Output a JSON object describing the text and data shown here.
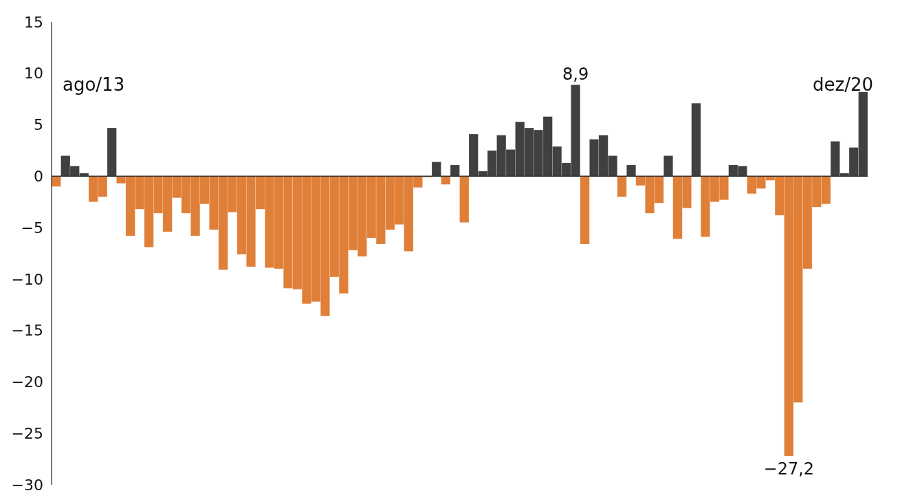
{
  "chart_data": {
    "type": "bar",
    "annotations": [
      "ago/13",
      "dez/20"
    ],
    "categories": [
      null,
      null,
      null,
      null,
      null,
      null,
      null,
      null,
      null,
      null,
      null,
      null,
      null,
      null,
      null,
      null,
      null,
      null,
      null,
      null,
      null,
      null,
      null,
      null,
      null,
      null,
      null,
      null,
      null,
      null,
      null,
      null,
      null,
      null,
      null,
      null,
      null,
      null,
      null,
      null,
      null,
      null,
      null,
      null,
      null,
      null,
      null,
      null,
      null,
      null,
      null,
      null,
      null,
      null,
      null,
      null,
      null,
      null,
      null,
      null,
      null,
      null,
      null,
      null,
      null,
      null,
      null,
      null,
      null,
      null,
      null,
      null,
      null,
      null,
      null,
      null,
      null,
      null,
      null,
      null,
      null,
      null,
      null,
      null,
      null,
      null,
      null,
      null
    ],
    "values": [
      -1.0,
      2.0,
      1.0,
      0.3,
      -2.5,
      -2.0,
      4.7,
      -0.7,
      -5.8,
      -3.2,
      -6.9,
      -3.6,
      -5.4,
      -2.1,
      -3.6,
      -5.8,
      -2.7,
      -5.2,
      -9.1,
      -3.5,
      -7.6,
      -8.8,
      -3.2,
      -8.9,
      -9.0,
      -10.9,
      -11.0,
      -12.4,
      -12.2,
      -13.6,
      -9.8,
      -11.4,
      -7.2,
      -7.8,
      -6.0,
      -6.6,
      -5.2,
      -4.7,
      -7.3,
      -1.1,
      -0.1,
      1.4,
      -0.8,
      1.1,
      -4.5,
      4.1,
      0.5,
      2.5,
      4.0,
      2.6,
      5.3,
      4.7,
      4.5,
      5.8,
      2.9,
      1.3,
      8.9,
      -6.6,
      3.6,
      4.0,
      2.0,
      -2.0,
      1.1,
      -0.9,
      -3.6,
      -2.6,
      2.0,
      -6.1,
      -3.1,
      7.1,
      -5.9,
      -2.5,
      -2.3,
      1.1,
      1.0,
      -1.7,
      -1.2,
      -0.4,
      -3.8,
      -27.2,
      -22.0,
      -9.0,
      -3.0,
      -2.7,
      3.4,
      0.3,
      2.8,
      8.2
    ],
    "colors": [
      "#e07f38",
      "#404040",
      "#404040",
      "#404040",
      "#e07f38",
      "#e07f38",
      "#404040",
      "#e07f38",
      "#e07f38",
      "#e07f38",
      "#e07f38",
      "#e07f38",
      "#e07f38",
      "#e07f38",
      "#e07f38",
      "#e07f38",
      "#e07f38",
      "#e07f38",
      "#e07f38",
      "#e07f38",
      "#e07f38",
      "#e07f38",
      "#e07f38",
      "#e07f38",
      "#e07f38",
      "#e07f38",
      "#e07f38",
      "#e07f38",
      "#e07f38",
      "#e07f38",
      "#e07f38",
      "#e07f38",
      "#e07f38",
      "#e07f38",
      "#e07f38",
      "#e07f38",
      "#e07f38",
      "#e07f38",
      "#e07f38",
      "#e07f38",
      "#e07f38",
      "#404040",
      "#e07f38",
      "#404040",
      "#e07f38",
      "#404040",
      "#404040",
      "#404040",
      "#404040",
      "#404040",
      "#404040",
      "#404040",
      "#404040",
      "#404040",
      "#404040",
      "#404040",
      "#404040",
      "#e07f38",
      "#404040",
      "#404040",
      "#404040",
      "#e07f38",
      "#404040",
      "#e07f38",
      "#e07f38",
      "#e07f38",
      "#404040",
      "#e07f38",
      "#e07f38",
      "#404040",
      "#e07f38",
      "#e07f38",
      "#e07f38",
      "#404040",
      "#404040",
      "#e07f38",
      "#e07f38",
      "#e07f38",
      "#e07f38",
      "#e07f38",
      "#e07f38",
      "#e07f38",
      "#e07f38",
      "#e07f38",
      "#404040",
      "#404040",
      "#404040",
      "#404040"
    ],
    "value_labels": [
      null,
      null,
      null,
      null,
      null,
      null,
      null,
      null,
      null,
      null,
      null,
      null,
      null,
      null,
      null,
      null,
      null,
      null,
      null,
      null,
      null,
      null,
      null,
      null,
      null,
      null,
      null,
      null,
      null,
      null,
      null,
      null,
      null,
      null,
      null,
      null,
      null,
      null,
      null,
      null,
      null,
      null,
      null,
      null,
      null,
      null,
      null,
      null,
      null,
      null,
      null,
      null,
      null,
      null,
      null,
      null,
      "8,9",
      null,
      null,
      null,
      null,
      null,
      null,
      null,
      null,
      null,
      null,
      null,
      null,
      null,
      null,
      null,
      null,
      null,
      null,
      null,
      null,
      null,
      null,
      "−27,2",
      null,
      null,
      null,
      null,
      null,
      null,
      null,
      null
    ],
    "ylim": [
      -30,
      15
    ],
    "yticks": [
      15,
      10,
      5,
      0,
      {
        "value": -5,
        "label": "−5"
      },
      {
        "value": -10,
        "label": "−10"
      },
      {
        "value": -15,
        "label": "−15"
      },
      {
        "value": -20,
        "label": "−20"
      },
      {
        "value": -25,
        "label": "−25"
      },
      {
        "value": -30,
        "label": "−30"
      }
    ],
    "tick_labels": "y"
  }
}
